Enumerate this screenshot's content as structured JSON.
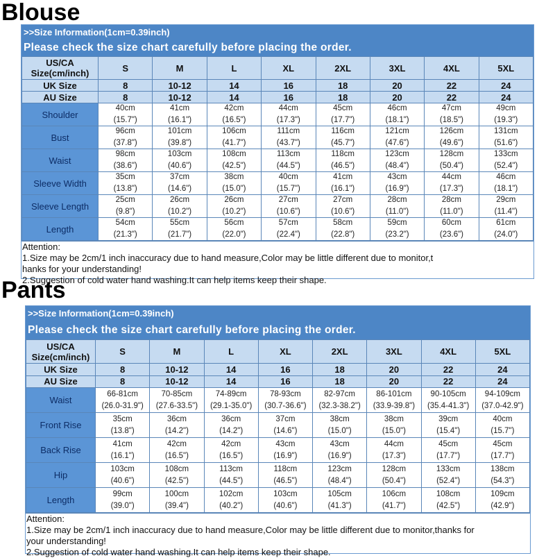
{
  "sections": [
    {
      "title": "Blouse",
      "info": ">>Size Information(1cm=0.39inch)",
      "notice": "Please check the size chart carefully before placing the order.",
      "header_label": [
        "US/CA",
        "Size(cm/inch)"
      ],
      "sizes": [
        "S",
        "M",
        "L",
        "XL",
        "2XL",
        "3XL",
        "4XL",
        "5XL"
      ],
      "uk_label": "UK Size",
      "uk": [
        "8",
        "10-12",
        "14",
        "16",
        "18",
        "20",
        "22",
        "24"
      ],
      "au_label": "AU Size",
      "au": [
        "8",
        "10-12",
        "14",
        "16",
        "18",
        "20",
        "22",
        "24"
      ],
      "rows": [
        {
          "label": "Shoulder",
          "cm": [
            "40cm",
            "41cm",
            "42cm",
            "44cm",
            "45cm",
            "46cm",
            "47cm",
            "49cm"
          ],
          "inch": [
            "(15.7\")",
            "(16.1\")",
            "(16.5\")",
            "(17.3\")",
            "(17.7\")",
            "(18.1\")",
            "(18.5\")",
            "(19.3\")"
          ]
        },
        {
          "label": "Bust",
          "cm": [
            "96cm",
            "101cm",
            "106cm",
            "111cm",
            "116cm",
            "121cm",
            "126cm",
            "131cm"
          ],
          "inch": [
            "(37.8\")",
            "(39.8\")",
            "(41.7\")",
            "(43.7\")",
            "(45.7\")",
            "(47.6\")",
            "(49.6\")",
            "(51.6\")"
          ]
        },
        {
          "label": "Waist",
          "cm": [
            "98cm",
            "103cm",
            "108cm",
            "113cm",
            "118cm",
            "123cm",
            "128cm",
            "133cm"
          ],
          "inch": [
            "(38.6\")",
            "(40.6\")",
            "(42.5\")",
            "(44.5\")",
            "(46.5\")",
            "(48.4\")",
            "(50.4\")",
            "(52.4\")"
          ]
        },
        {
          "label": "Sleeve Width",
          "cm": [
            "35cm",
            "37cm",
            "38cm",
            "40cm",
            "41cm",
            "43cm",
            "44cm",
            "46cm"
          ],
          "inch": [
            "(13.8\")",
            "(14.6\")",
            "(15.0\")",
            "(15.7\")",
            "(16.1\")",
            "(16.9\")",
            "(17.3\")",
            "(18.1\")"
          ]
        },
        {
          "label": "Sleeve Length",
          "cm": [
            "25cm",
            "26cm",
            "26cm",
            "27cm",
            "27cm",
            "28cm",
            "28cm",
            "29cm"
          ],
          "inch": [
            "(9.8\")",
            "(10.2\")",
            "(10.2\")",
            "(10.6\")",
            "(10.6\")",
            "(11.0\")",
            "(11.0\")",
            "(11.4\")"
          ]
        },
        {
          "label": "Length",
          "cm": [
            "54cm",
            "55cm",
            "56cm",
            "57cm",
            "58cm",
            "59cm",
            "60cm",
            "61cm"
          ],
          "inch": [
            "(21.3\")",
            "(21.7\")",
            "(22.0\")",
            "(22.4\")",
            "(22.8\")",
            "(23.2\")",
            "(23.6\")",
            "(24.0\")"
          ]
        }
      ],
      "attention": [
        "Attention:",
        "1.Size may be 2cm/1 inch inaccuracy due to hand measure,Color may be little different due to monitor,t",
        "hanks for your understanding!",
        "2.Suggestion of cold water hand washing.It can help items keep their shape."
      ]
    },
    {
      "title": "Pants",
      "info": ">>Size Information(1cm=0.39inch)",
      "notice": "Please check the size chart carefully before placing the order.",
      "header_label": [
        "US/CA",
        "Size(cm/inch)"
      ],
      "sizes": [
        "S",
        "M",
        "L",
        "XL",
        "2XL",
        "3XL",
        "4XL",
        "5XL"
      ],
      "uk_label": "UK Size",
      "uk": [
        "8",
        "10-12",
        "14",
        "16",
        "18",
        "20",
        "22",
        "24"
      ],
      "au_label": "AU Size",
      "au": [
        "8",
        "10-12",
        "14",
        "16",
        "18",
        "20",
        "22",
        "24"
      ],
      "rows": [
        {
          "label": "Waist",
          "cm": [
            "66-81cm",
            "70-85cm",
            "74-89cm",
            "78-93cm",
            "82-97cm",
            "86-101cm",
            "90-105cm",
            "94-109cm"
          ],
          "inch": [
            "(26.0-31.9\")",
            "(27.6-33.5\")",
            "(29.1-35.0\")",
            "(30.7-36.6\")",
            "(32.3-38.2\")",
            "(33.9-39.8\")",
            "(35.4-41.3\")",
            "(37.0-42.9\")"
          ]
        },
        {
          "label": "Front Rise",
          "cm": [
            "35cm",
            "36cm",
            "36cm",
            "37cm",
            "38cm",
            "38cm",
            "39cm",
            "40cm"
          ],
          "inch": [
            "(13.8\")",
            "(14.2\")",
            "(14.2\")",
            "(14.6\")",
            "(15.0\")",
            "(15.0\")",
            "(15.4\")",
            "(15.7\")"
          ]
        },
        {
          "label": "Back Rise",
          "cm": [
            "41cm",
            "42cm",
            "42cm",
            "43cm",
            "43cm",
            "44cm",
            "45cm",
            "45cm"
          ],
          "inch": [
            "(16.1\")",
            "(16.5\")",
            "(16.5\")",
            "(16.9\")",
            "(16.9\")",
            "(17.3\")",
            "(17.7\")",
            "(17.7\")"
          ]
        },
        {
          "label": "Hip",
          "cm": [
            "103cm",
            "108cm",
            "113cm",
            "118cm",
            "123cm",
            "128cm",
            "133cm",
            "138cm"
          ],
          "inch": [
            "(40.6\")",
            "(42.5\")",
            "(44.5\")",
            "(46.5\")",
            "(48.4\")",
            "(50.4\")",
            "(52.4\")",
            "(54.3\")"
          ]
        },
        {
          "label": "Length",
          "cm": [
            "99cm",
            "100cm",
            "102cm",
            "103cm",
            "105cm",
            "106cm",
            "108cm",
            "109cm"
          ],
          "inch": [
            "(39.0\")",
            "(39.4\")",
            "(40.2\")",
            "(40.6\")",
            "(41.3\")",
            "(41.7\")",
            "(42.5\")",
            "(42.9\")"
          ]
        }
      ],
      "attention": [
        "Attention:",
        "1.Size may be 2cm/1 inch inaccuracy due to hand measure,Color may be little different due to monitor,thanks for",
        "your understanding!",
        "2.Suggestion of cold water hand washing.It can help items keep their shape."
      ]
    }
  ],
  "colors": {
    "band": "#4d86c6",
    "header_cell": "#c6dbf1",
    "label_cell": "#5b95d6",
    "label_text": "#0d2d66"
  }
}
